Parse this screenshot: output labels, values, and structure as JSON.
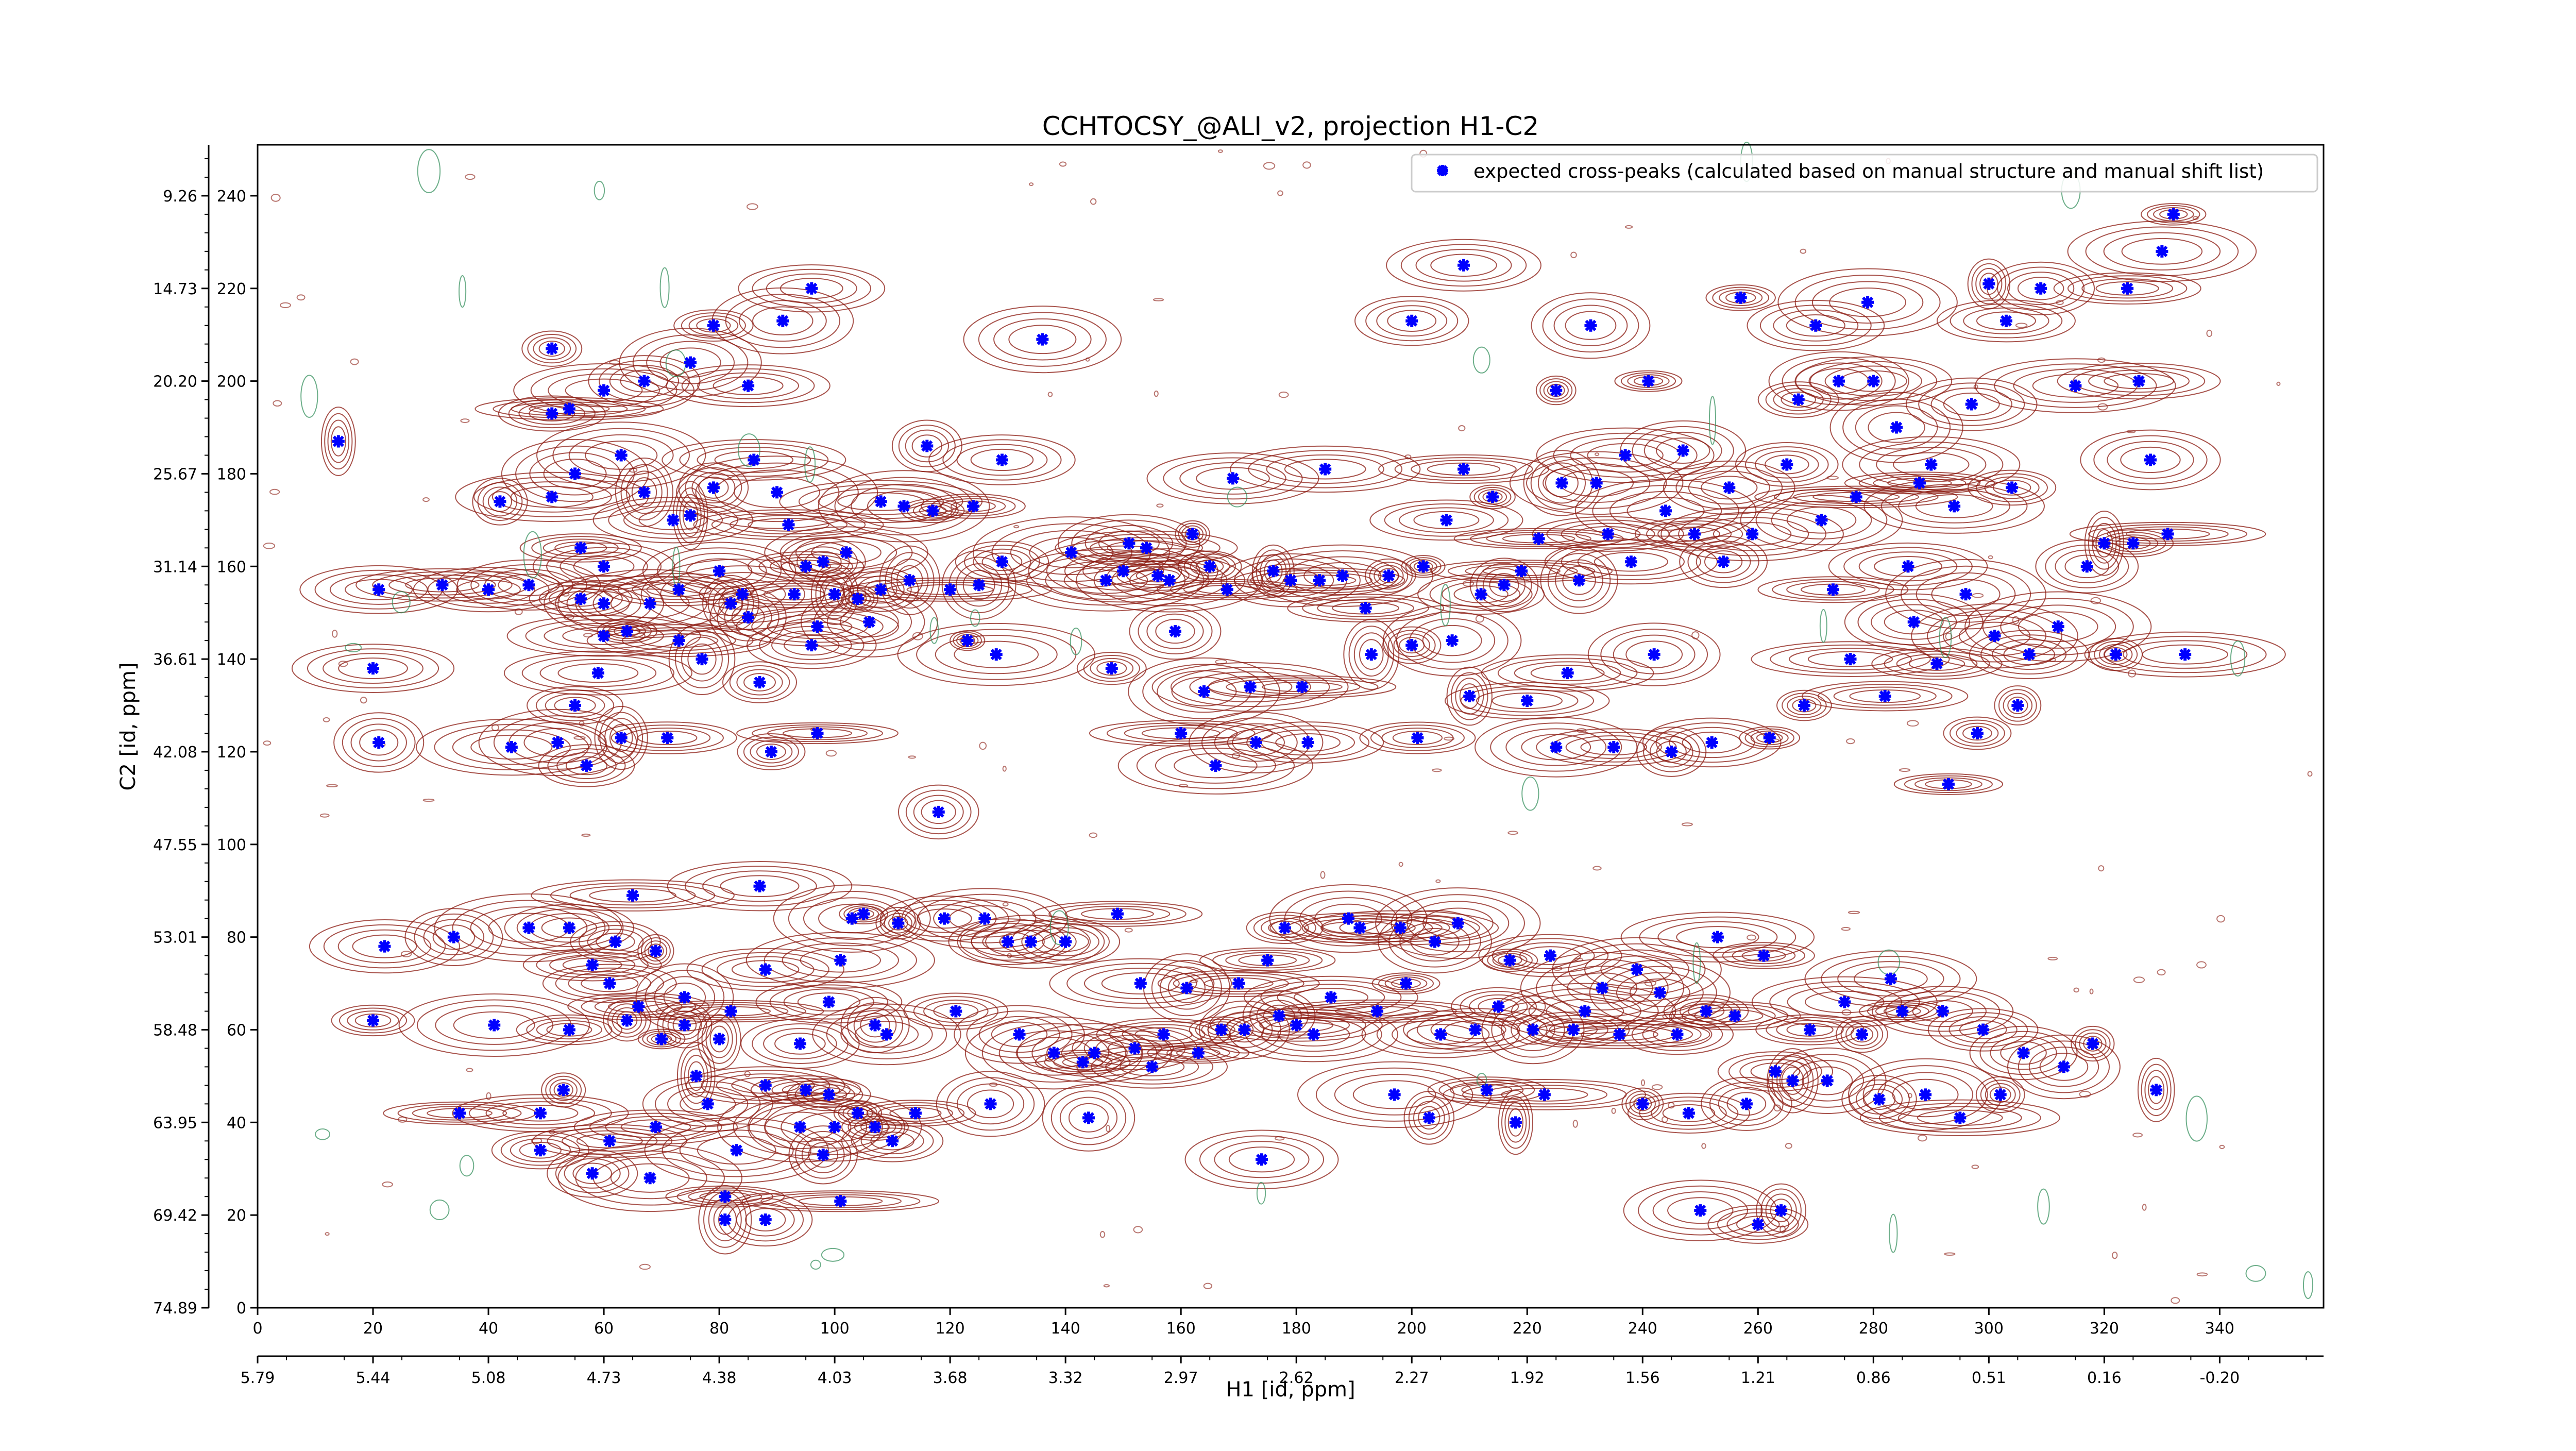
{
  "chart_data": {
    "type": "scatter",
    "title": "CCHTOCSY_@ALI_v2, projection H1-C2",
    "xlabel": "H1 [id, ppm]",
    "ylabel": "C2 [id, ppm]",
    "xlim": [
      0,
      358
    ],
    "ylim": [
      0,
      251
    ],
    "grid": false,
    "legend_position": "top-right",
    "x_ticks": [
      "0",
      "20",
      "40",
      "60",
      "80",
      "100",
      "120",
      "140",
      "160",
      "180",
      "200",
      "220",
      "240",
      "260",
      "280",
      "300",
      "320",
      "340"
    ],
    "x_ppm_ticks": [
      "5.79",
      "5.44",
      "5.08",
      "4.73",
      "4.38",
      "4.03",
      "3.68",
      "3.32",
      "2.97",
      "2.62",
      "2.27",
      "1.92",
      "1.56",
      "1.21",
      "0.86",
      "0.51",
      "0.16",
      "-0.20"
    ],
    "y_ticks": [
      "0",
      "20",
      "40",
      "60",
      "80",
      "100",
      "120",
      "140",
      "160",
      "180",
      "200",
      "220",
      "240"
    ],
    "y_ppm_ticks": [
      "74.89",
      "69.42",
      "63.95",
      "58.48",
      "53.01",
      "47.55",
      "42.08",
      "36.61",
      "31.14",
      "25.67",
      "20.20",
      "14.73",
      "9.26"
    ],
    "colors": {
      "marker": "#0000ff",
      "positive_contours": "#8b1a10",
      "negative_contours": "#2e8b57"
    },
    "series": [
      {
        "name": "expected cross-peaks (calculated based on manual structure and manual shift list)",
        "marker": "x",
        "points": [
          [
            14,
            187
          ],
          [
            20,
            62
          ],
          [
            21,
            155
          ],
          [
            21,
            122
          ],
          [
            20,
            138
          ],
          [
            22,
            78
          ],
          [
            32,
            156
          ],
          [
            34,
            80
          ],
          [
            35,
            42
          ],
          [
            40,
            155
          ],
          [
            41,
            61
          ],
          [
            42,
            174
          ],
          [
            44,
            121
          ],
          [
            47,
            156
          ],
          [
            47,
            82
          ],
          [
            49,
            34
          ],
          [
            49,
            42
          ],
          [
            51,
            207
          ],
          [
            51,
            193
          ],
          [
            51,
            175
          ],
          [
            52,
            122
          ],
          [
            53,
            47
          ],
          [
            54,
            82
          ],
          [
            54,
            60
          ],
          [
            54,
            194
          ],
          [
            55,
            130
          ],
          [
            55,
            180
          ],
          [
            56,
            164
          ],
          [
            56,
            153
          ],
          [
            57,
            117
          ],
          [
            58,
            29
          ],
          [
            58,
            74
          ],
          [
            59,
            137
          ],
          [
            60,
            198
          ],
          [
            60,
            160
          ],
          [
            60,
            152
          ],
          [
            60,
            145
          ],
          [
            61,
            36
          ],
          [
            61,
            70
          ],
          [
            62,
            79
          ],
          [
            63,
            184
          ],
          [
            63,
            123
          ],
          [
            64,
            62
          ],
          [
            64,
            146
          ],
          [
            65,
            89
          ],
          [
            66,
            65
          ],
          [
            67,
            200
          ],
          [
            67,
            176
          ],
          [
            68,
            28
          ],
          [
            68,
            152
          ],
          [
            69,
            39
          ],
          [
            69,
            77
          ],
          [
            70,
            58
          ],
          [
            71,
            123
          ],
          [
            72,
            170
          ],
          [
            73,
            155
          ],
          [
            73,
            144
          ],
          [
            74,
            67
          ],
          [
            74,
            61
          ],
          [
            75,
            171
          ],
          [
            75,
            204
          ],
          [
            76,
            50
          ],
          [
            77,
            140
          ],
          [
            78,
            44
          ],
          [
            79,
            212
          ],
          [
            79,
            177
          ],
          [
            80,
            58
          ],
          [
            80,
            159
          ],
          [
            81,
            24
          ],
          [
            81,
            19
          ],
          [
            82,
            152
          ],
          [
            82,
            64
          ],
          [
            83,
            34
          ],
          [
            84,
            154
          ],
          [
            85,
            199
          ],
          [
            85,
            149
          ],
          [
            86,
            183
          ],
          [
            87,
            135
          ],
          [
            87,
            91
          ],
          [
            88,
            19
          ],
          [
            88,
            48
          ],
          [
            88,
            73
          ],
          [
            89,
            120
          ],
          [
            90,
            176
          ],
          [
            91,
            213
          ],
          [
            92,
            169
          ],
          [
            93,
            154
          ],
          [
            94,
            57
          ],
          [
            94,
            39
          ],
          [
            95,
            160
          ],
          [
            95,
            47
          ],
          [
            96,
            220
          ],
          [
            96,
            143
          ],
          [
            97,
            147
          ],
          [
            97,
            124
          ],
          [
            98,
            161
          ],
          [
            98,
            33
          ],
          [
            99,
            46
          ],
          [
            99,
            66
          ],
          [
            100,
            154
          ],
          [
            100,
            39
          ],
          [
            101,
            75
          ],
          [
            101,
            23
          ],
          [
            102,
            163
          ],
          [
            103,
            84
          ],
          [
            104,
            153
          ],
          [
            104,
            42
          ],
          [
            105,
            85
          ],
          [
            106,
            148
          ],
          [
            107,
            39
          ],
          [
            107,
            61
          ],
          [
            108,
            155
          ],
          [
            108,
            174
          ],
          [
            109,
            59
          ],
          [
            110,
            36
          ],
          [
            111,
            83
          ],
          [
            112,
            173
          ],
          [
            113,
            157
          ],
          [
            114,
            42
          ],
          [
            116,
            186
          ],
          [
            117,
            172
          ],
          [
            118,
            107
          ],
          [
            119,
            84
          ],
          [
            120,
            155
          ],
          [
            121,
            64
          ],
          [
            123,
            144
          ],
          [
            124,
            173
          ],
          [
            125,
            156
          ],
          [
            126,
            84
          ],
          [
            127,
            44
          ],
          [
            128,
            141
          ],
          [
            129,
            183
          ],
          [
            129,
            161
          ],
          [
            130,
            79
          ],
          [
            132,
            59
          ],
          [
            134,
            79
          ],
          [
            136,
            209
          ],
          [
            138,
            55
          ],
          [
            140,
            79
          ],
          [
            141,
            163
          ],
          [
            143,
            53
          ],
          [
            144,
            41
          ],
          [
            145,
            55
          ],
          [
            147,
            157
          ],
          [
            148,
            138
          ],
          [
            149,
            85
          ],
          [
            150,
            159
          ],
          [
            151,
            165
          ],
          [
            152,
            56
          ],
          [
            153,
            70
          ],
          [
            154,
            164
          ],
          [
            155,
            52
          ],
          [
            156,
            158
          ],
          [
            157,
            59
          ],
          [
            158,
            157
          ],
          [
            159,
            146
          ],
          [
            160,
            124
          ],
          [
            161,
            69
          ],
          [
            162,
            167
          ],
          [
            163,
            55
          ],
          [
            164,
            133
          ],
          [
            165,
            160
          ],
          [
            166,
            117
          ],
          [
            167,
            60
          ],
          [
            168,
            155
          ],
          [
            169,
            179
          ],
          [
            170,
            70
          ],
          [
            171,
            60
          ],
          [
            172,
            134
          ],
          [
            173,
            122
          ],
          [
            174,
            32
          ],
          [
            175,
            75
          ],
          [
            176,
            159
          ],
          [
            177,
            63
          ],
          [
            178,
            82
          ],
          [
            179,
            157
          ],
          [
            180,
            61
          ],
          [
            181,
            134
          ],
          [
            182,
            122
          ],
          [
            183,
            59
          ],
          [
            184,
            157
          ],
          [
            185,
            181
          ],
          [
            186,
            67
          ],
          [
            188,
            158
          ],
          [
            189,
            84
          ],
          [
            191,
            82
          ],
          [
            192,
            151
          ],
          [
            193,
            141
          ],
          [
            194,
            64
          ],
          [
            196,
            158
          ],
          [
            197,
            46
          ],
          [
            198,
            82
          ],
          [
            199,
            70
          ],
          [
            200,
            213
          ],
          [
            200,
            143
          ],
          [
            201,
            123
          ],
          [
            202,
            160
          ],
          [
            203,
            41
          ],
          [
            204,
            79
          ],
          [
            205,
            59
          ],
          [
            206,
            170
          ],
          [
            207,
            144
          ],
          [
            208,
            83
          ],
          [
            209,
            225
          ],
          [
            209,
            181
          ],
          [
            210,
            132
          ],
          [
            211,
            60
          ],
          [
            212,
            154
          ],
          [
            213,
            47
          ],
          [
            214,
            175
          ],
          [
            215,
            65
          ],
          [
            216,
            156
          ],
          [
            217,
            75
          ],
          [
            218,
            40
          ],
          [
            219,
            159
          ],
          [
            220,
            131
          ],
          [
            221,
            60
          ],
          [
            222,
            166
          ],
          [
            223,
            46
          ],
          [
            224,
            76
          ],
          [
            225,
            198
          ],
          [
            225,
            121
          ],
          [
            226,
            178
          ],
          [
            227,
            137
          ],
          [
            228,
            60
          ],
          [
            229,
            157
          ],
          [
            230,
            64
          ],
          [
            231,
            212
          ],
          [
            232,
            178
          ],
          [
            233,
            69
          ],
          [
            234,
            167
          ],
          [
            235,
            121
          ],
          [
            236,
            59
          ],
          [
            237,
            184
          ],
          [
            238,
            161
          ],
          [
            239,
            73
          ],
          [
            240,
            44
          ],
          [
            241,
            200
          ],
          [
            242,
            141
          ],
          [
            243,
            68
          ],
          [
            244,
            172
          ],
          [
            245,
            120
          ],
          [
            246,
            59
          ],
          [
            247,
            185
          ],
          [
            248,
            42
          ],
          [
            249,
            167
          ],
          [
            250,
            21
          ],
          [
            251,
            64
          ],
          [
            252,
            122
          ],
          [
            253,
            80
          ],
          [
            254,
            161
          ],
          [
            255,
            177
          ],
          [
            256,
            63
          ],
          [
            257,
            218
          ],
          [
            258,
            44
          ],
          [
            259,
            167
          ],
          [
            260,
            18
          ],
          [
            261,
            76
          ],
          [
            262,
            123
          ],
          [
            263,
            51
          ],
          [
            264,
            21
          ],
          [
            265,
            182
          ],
          [
            266,
            49
          ],
          [
            267,
            196
          ],
          [
            268,
            130
          ],
          [
            269,
            60
          ],
          [
            270,
            212
          ],
          [
            271,
            170
          ],
          [
            272,
            49
          ],
          [
            273,
            155
          ],
          [
            274,
            200
          ],
          [
            275,
            66
          ],
          [
            276,
            140
          ],
          [
            277,
            175
          ],
          [
            278,
            59
          ],
          [
            279,
            217
          ],
          [
            280,
            200
          ],
          [
            281,
            45
          ],
          [
            282,
            132
          ],
          [
            283,
            71
          ],
          [
            284,
            190
          ],
          [
            285,
            64
          ],
          [
            286,
            160
          ],
          [
            287,
            148
          ],
          [
            288,
            178
          ],
          [
            289,
            46
          ],
          [
            290,
            182
          ],
          [
            291,
            139
          ],
          [
            292,
            64
          ],
          [
            293,
            113
          ],
          [
            294,
            173
          ],
          [
            295,
            41
          ],
          [
            296,
            154
          ],
          [
            297,
            195
          ],
          [
            298,
            124
          ],
          [
            299,
            60
          ],
          [
            300,
            221
          ],
          [
            301,
            145
          ],
          [
            302,
            46
          ],
          [
            303,
            213
          ],
          [
            304,
            177
          ],
          [
            305,
            130
          ],
          [
            306,
            55
          ],
          [
            307,
            141
          ],
          [
            309,
            220
          ],
          [
            312,
            147
          ],
          [
            313,
            52
          ],
          [
            315,
            199
          ],
          [
            317,
            160
          ],
          [
            318,
            57
          ],
          [
            320,
            165
          ],
          [
            322,
            141
          ],
          [
            324,
            220
          ],
          [
            325,
            165
          ],
          [
            326,
            200
          ],
          [
            328,
            183
          ],
          [
            329,
            47
          ],
          [
            330,
            228
          ],
          [
            331,
            167
          ],
          [
            332,
            236
          ],
          [
            334,
            141
          ]
        ]
      }
    ]
  }
}
